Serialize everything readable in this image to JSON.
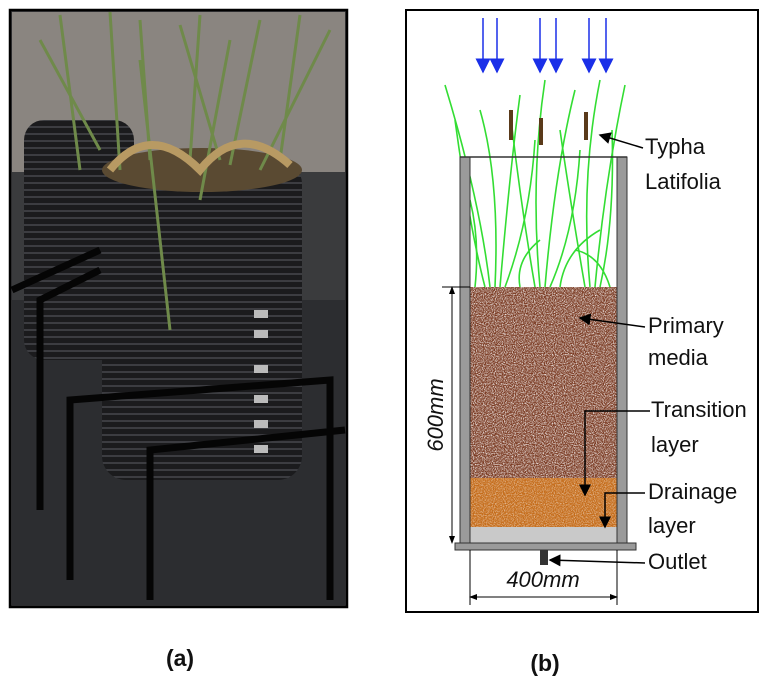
{
  "panels": [
    {
      "label": "(a)"
    },
    {
      "label": "(b)",
      "annotations": [
        {
          "lines": [
            "Typha",
            "Latifolia"
          ]
        },
        {
          "lines": [
            "Primary",
            "media"
          ]
        },
        {
          "lines": [
            "Transition",
            "layer"
          ]
        },
        {
          "lines": [
            "Drainage",
            "layer"
          ]
        },
        {
          "lines": [
            "Outlet"
          ]
        }
      ],
      "dimensions": {
        "height": "600mm",
        "width": "400mm"
      }
    }
  ]
}
